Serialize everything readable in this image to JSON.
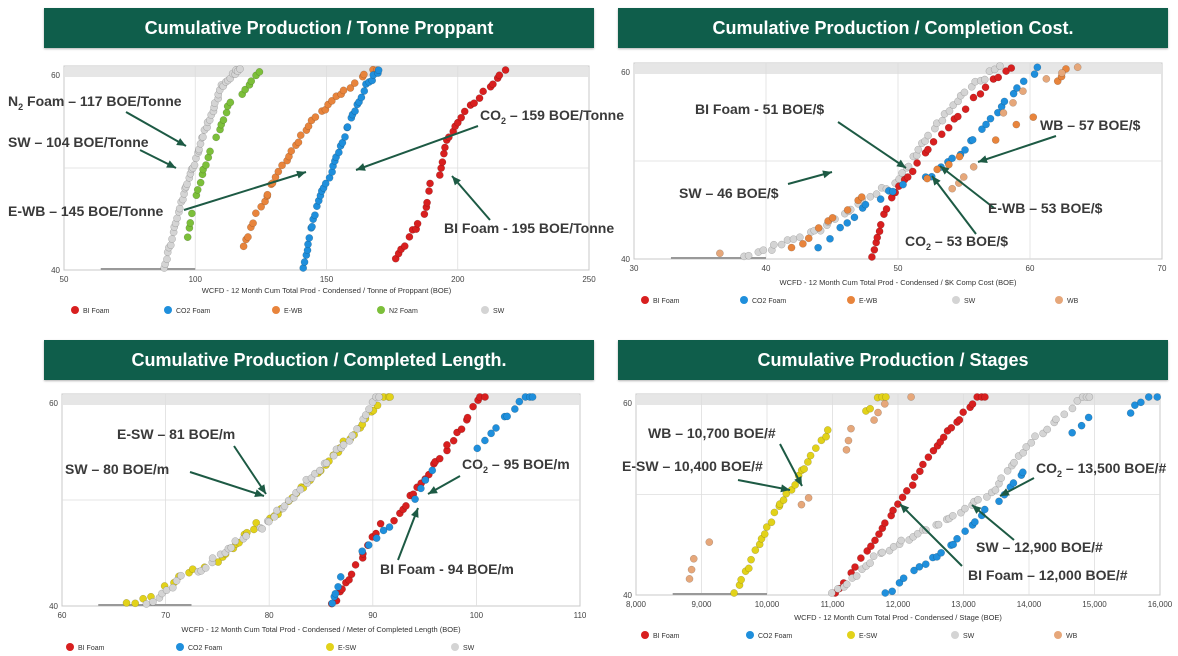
{
  "colors": {
    "banner": "#0f5e4b",
    "BI Foam": "#d81f1f",
    "CO2 Foam": "#1f8fdc",
    "E-WB": "#e8843c",
    "N2 Foam": "#7cbf3a",
    "SW": "#d4d4d4",
    "E-SW": "#e2d21a",
    "WB": "#e6a77a",
    "arrow": "#1d5a44"
  },
  "chart_data": [
    {
      "type": "scatter",
      "title": "Cumulative Production / Tonne Proppant",
      "xlabel": "WCFD - 12 Month Cum Total Prod - Condensed / Tonne of Proppant (BOE)",
      "ylabel": "",
      "xlim": [
        50,
        250
      ],
      "ylim": [
        40,
        60
      ],
      "xticks": [
        "50",
        "100",
        "150",
        "200",
        "250"
      ],
      "yticks": [
        "40",
        "60"
      ],
      "legend": [
        "BI Foam",
        "CO2 Foam",
        "E-WB",
        "N2 Foam",
        "SW"
      ],
      "series": [
        {
          "name": "SW",
          "x_range": [
            88,
            118
          ],
          "y_range": [
            40,
            60
          ]
        },
        {
          "name": "N2 Foam",
          "x_range": [
            97,
            126
          ],
          "y_range": [
            43,
            60
          ]
        },
        {
          "name": "E-WB",
          "x_range": [
            118,
            170
          ],
          "y_range": [
            42,
            60
          ]
        },
        {
          "name": "CO2 Foam",
          "x_range": [
            141,
            171
          ],
          "y_range": [
            40,
            60
          ]
        },
        {
          "name": "BI Foam",
          "x_range": [
            176,
            219
          ],
          "y_range": [
            41,
            60
          ]
        }
      ],
      "annotations": [
        {
          "text_main": "N",
          "text_sub": "2",
          "text_rest": " Foam – 117 BOE/Tonne"
        },
        {
          "text_main": "SW – 104 BOE/Tonne"
        },
        {
          "text_main": "E-WB – 145 BOE/Tonne"
        },
        {
          "text_main": "CO",
          "text_sub": "2",
          "text_rest": " – 159 BOE/Tonne"
        },
        {
          "text_main": "BI Foam - 195 BOE/Tonne"
        }
      ]
    },
    {
      "type": "scatter",
      "title": "Cumulative Production / Completion Cost.",
      "xlabel": "WCFD - 12 Month Cum Total Prod - Condensed / $K Comp Cost (BOE)",
      "ylabel": "",
      "xlim": [
        30,
        70
      ],
      "ylim": [
        40,
        60
      ],
      "xticks": [
        "30",
        "40",
        "50",
        "60",
        "70"
      ],
      "yticks": [
        "40",
        "60"
      ],
      "legend": [
        "BI Foam",
        "CO2 Foam",
        "E-WB",
        "SW",
        "WB"
      ],
      "series": [
        {
          "name": "SW",
          "x_range": [
            38,
            58
          ],
          "y_range": [
            40,
            60
          ]
        },
        {
          "name": "BI Foam",
          "x_range": [
            48,
            59
          ],
          "y_range": [
            40,
            60
          ]
        },
        {
          "name": "CO2 Foam",
          "x_range": [
            44,
            61
          ],
          "y_range": [
            41,
            60
          ]
        },
        {
          "name": "E-WB",
          "x_range": [
            42,
            63
          ],
          "y_range": [
            41,
            60
          ]
        },
        {
          "name": "WB",
          "x_range": [
            36,
            64
          ],
          "y_range": [
            40,
            60
          ]
        }
      ],
      "annotations": [
        {
          "text_main": "BI Foam - 51 BOE/$"
        },
        {
          "text_main": "WB – 57 BOE/$"
        },
        {
          "text_main": "SW – 46 BOE/$"
        },
        {
          "text_main": "E-WB – 53 BOE/$"
        },
        {
          "text_main": "CO",
          "text_sub": "2",
          "text_rest": " – 53 BOE/$"
        }
      ]
    },
    {
      "type": "scatter",
      "title": "Cumulative Production / Completed Length.",
      "xlabel": "WCFD - 12 Month Cum Total Prod - Condensed / Meter of Completed Length (BOE)",
      "ylabel": "",
      "xlim": [
        60,
        110
      ],
      "ylim": [
        40,
        60
      ],
      "xticks": [
        "60",
        "70",
        "80",
        "90",
        "100",
        "110"
      ],
      "yticks": [
        "40",
        "60"
      ],
      "legend": [
        "BI Foam",
        "CO2 Foam",
        "E-SW",
        "SW"
      ],
      "series": [
        {
          "name": "E-SW",
          "x_range": [
            66,
            92
          ],
          "y_range": [
            40,
            61
          ]
        },
        {
          "name": "SW",
          "x_range": [
            68,
            91
          ],
          "y_range": [
            40,
            61
          ]
        },
        {
          "name": "BI Foam",
          "x_range": [
            86,
            101
          ],
          "y_range": [
            40,
            61
          ]
        },
        {
          "name": "CO2 Foam",
          "x_range": [
            86,
            106
          ],
          "y_range": [
            40,
            61
          ]
        }
      ],
      "annotations": [
        {
          "text_main": "E-SW – 81 BOE/m"
        },
        {
          "text_main": "SW – 80 BOE/m"
        },
        {
          "text_main": "CO",
          "text_sub": "2",
          "text_rest": " – 95 BOE/m"
        },
        {
          "text_main": "BI Foam -  94 BOE/m"
        }
      ]
    },
    {
      "type": "scatter",
      "title": "Cumulative Production / Stages",
      "xlabel": "WCFD - 12 Month Cum Total Prod - Condensed / Stage (BOE)",
      "ylabel": "",
      "xlim": [
        8000,
        16000
      ],
      "ylim": [
        40,
        60
      ],
      "xticks": [
        "8,000",
        "9,000",
        "10,000",
        "11,000",
        "12,000",
        "13,000",
        "14,000",
        "15,000",
        "16,000"
      ],
      "yticks": [
        "40",
        "60"
      ],
      "legend": [
        "BI Foam",
        "CO2 Foam",
        "E-SW",
        "SW",
        "WB"
      ],
      "series": [
        {
          "name": "E-SW",
          "x_range": [
            9500,
            11900
          ],
          "y_range": [
            40,
            61
          ]
        },
        {
          "name": "WB",
          "x_range": [
            8800,
            12200
          ],
          "y_range": [
            41,
            61
          ]
        },
        {
          "name": "BI Foam",
          "x_range": [
            11000,
            13400
          ],
          "y_range": [
            40,
            61
          ]
        },
        {
          "name": "SW",
          "x_range": [
            11000,
            15000
          ],
          "y_range": [
            40,
            61
          ]
        },
        {
          "name": "CO2 Foam",
          "x_range": [
            11800,
            16000
          ],
          "y_range": [
            40,
            61
          ]
        }
      ],
      "annotations": [
        {
          "text_main": "WB – 10,700 BOE/#"
        },
        {
          "text_main": "E-SW – 10,400 BOE/#"
        },
        {
          "text_main": "CO",
          "text_sub": "2",
          "text_rest": " – 13,500 BOE/#"
        },
        {
          "text_main": "SW – 12,900 BOE/#"
        },
        {
          "text_main": "BI Foam – 12,000 BOE/#"
        }
      ]
    }
  ]
}
